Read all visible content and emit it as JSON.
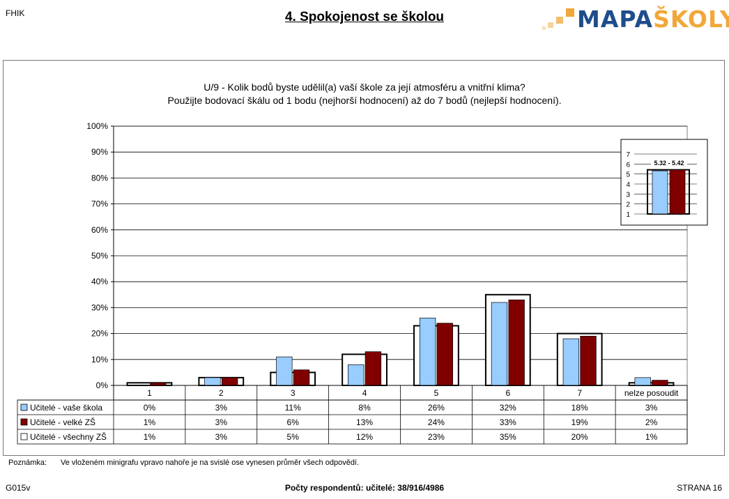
{
  "header": {
    "code": "FHIK",
    "title": "4. Spokojenost se školou",
    "logo_main": "MAPA",
    "logo_accent": "ŠKOLY"
  },
  "question": {
    "line1": "U/9 - Kolik bodů byste udělil(a) vaší škole za její atmosféru a vnitřní klima?",
    "line2": "Použijte bodovací škálu od 1 bodu (nejhorší hodnocení) až do 7 bodů (nejlepší hodnocení)."
  },
  "chart_data": [
    {
      "type": "bar",
      "categories": [
        "1",
        "2",
        "3",
        "4",
        "5",
        "6",
        "7",
        "nelze posoudit"
      ],
      "ylim": [
        0,
        100
      ],
      "y_ticks": [
        "0%",
        "10%",
        "20%",
        "30%",
        "40%",
        "50%",
        "60%",
        "70%",
        "80%",
        "90%",
        "100%"
      ],
      "series": [
        {
          "name": "Učitelé - vaše škola",
          "values": [
            0,
            3,
            11,
            8,
            26,
            32,
            18,
            3
          ],
          "labels": [
            "0%",
            "3%",
            "11%",
            "8%",
            "26%",
            "32%",
            "18%",
            "3%"
          ],
          "color": "#99ccff"
        },
        {
          "name": "Učitelé - velké ZŠ",
          "values": [
            1,
            3,
            6,
            13,
            24,
            33,
            19,
            2
          ],
          "labels": [
            "1%",
            "3%",
            "6%",
            "13%",
            "24%",
            "33%",
            "19%",
            "2%"
          ],
          "color": "#800000"
        },
        {
          "name": "Učitelé - všechny ZŠ",
          "values": [
            1,
            3,
            5,
            12,
            23,
            35,
            20,
            1
          ],
          "labels": [
            "1%",
            "3%",
            "5%",
            "12%",
            "23%",
            "35%",
            "20%",
            "1%"
          ],
          "color": "#ffffff"
        }
      ],
      "grid": true,
      "legend": "data table"
    },
    {
      "type": "bar",
      "ylim": [
        1,
        7
      ],
      "y_ticks": [
        "1",
        "2",
        "3",
        "4",
        "5",
        "6",
        "7"
      ],
      "label": "5.32 - 5.42",
      "series": [
        {
          "name": "Učitelé - vaše škola",
          "values": [
            5.32
          ],
          "color": "#99ccff"
        },
        {
          "name": "Učitelé - velké ZŠ",
          "values": [
            5.42
          ],
          "color": "#800000"
        }
      ]
    }
  ],
  "note": {
    "label": "Poznámka:",
    "text": "Ve vloženém minigrafu vpravo nahoře je na svislé ose vynesen průměr všech odpovědí."
  },
  "footer": {
    "left": "G015v",
    "center": "Počty respondentů: učitelé: 38/916/4986",
    "right": "STRANA 16"
  }
}
